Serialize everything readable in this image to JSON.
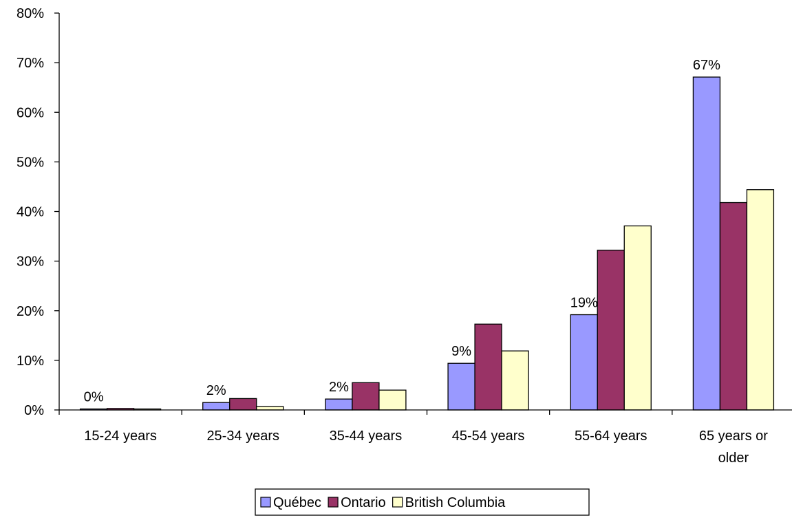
{
  "chart_data": {
    "type": "bar",
    "title": "",
    "xlabel": "",
    "ylabel": "",
    "categories": [
      "15-24 years",
      "25-34 years",
      "35-44 years",
      "45-54 years",
      "55-64 years",
      "65 years or older"
    ],
    "series": [
      {
        "name": "Québec",
        "color": "#9999ff",
        "values": [
          0.2,
          1.5,
          2.2,
          9.4,
          19.2,
          67.1
        ],
        "labels": [
          "0%",
          "2%",
          "2%",
          "9%",
          "19%",
          "67%"
        ]
      },
      {
        "name": "Ontario",
        "color": "#993366",
        "values": [
          0.3,
          2.3,
          5.5,
          17.3,
          32.2,
          41.8
        ]
      },
      {
        "name": "British Columbia",
        "color": "#ffffcc",
        "values": [
          0.2,
          0.7,
          4.0,
          11.9,
          37.1,
          44.4
        ]
      }
    ],
    "ylim": [
      0,
      80
    ],
    "yticks": [
      0,
      10,
      20,
      30,
      40,
      50,
      60,
      70,
      80
    ],
    "ytick_labels": [
      "0%",
      "10%",
      "20%",
      "30%",
      "40%",
      "50%",
      "60%",
      "70%",
      "80%"
    ],
    "grid": false,
    "legend": {
      "position": "bottom"
    }
  }
}
